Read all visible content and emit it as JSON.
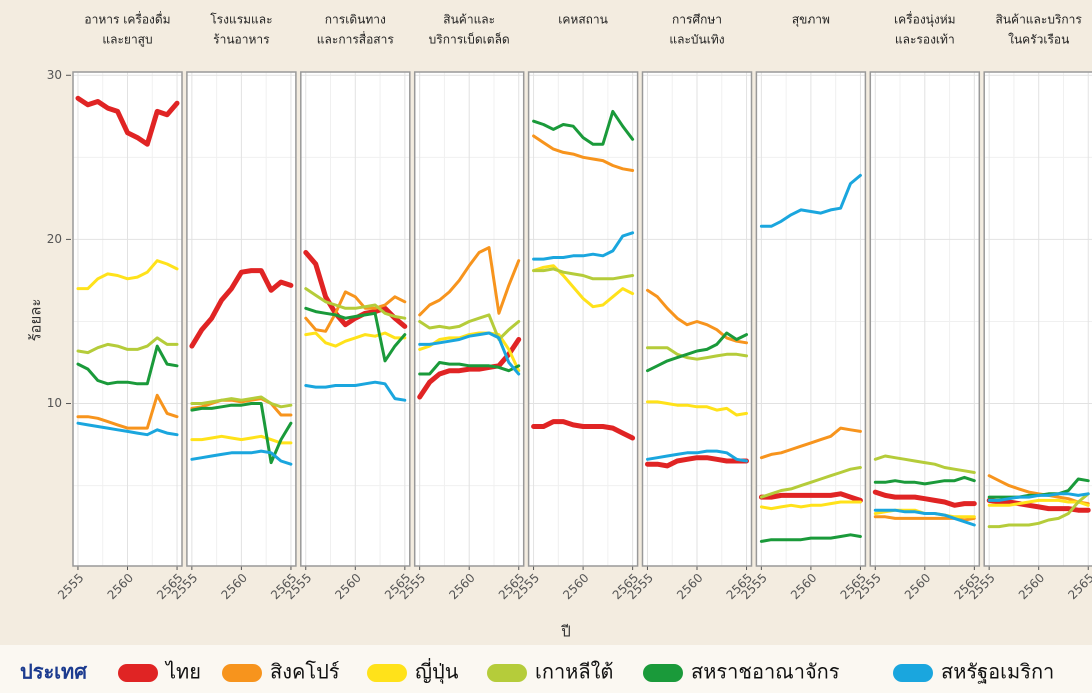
{
  "chart_data": {
    "type": "line",
    "ylabel": "ร้อยละ",
    "xlabel": "ปี",
    "legend_title": "ประเทศ",
    "x": [
      2555,
      2556,
      2557,
      2558,
      2559,
      2560,
      2561,
      2562,
      2563,
      2564,
      2565
    ],
    "xlim": [
      2554.5,
      2565.5
    ],
    "xticks": [
      2555,
      2560,
      2565
    ],
    "xminor": [
      2557.5,
      2562.5
    ],
    "ylim": [
      0.1,
      30.2
    ],
    "yticks": [
      10,
      20,
      30
    ],
    "yminor": [
      5,
      15,
      25
    ],
    "grid": true,
    "series": [
      {
        "name": "ไทย",
        "color": "#e02424"
      },
      {
        "name": "สิงคโปร์",
        "color": "#f7941d"
      },
      {
        "name": "ญี่ปุ่น",
        "color": "#ffe21a"
      },
      {
        "name": "เกาหลีใต้",
        "color": "#b5cc3a"
      },
      {
        "name": "สหราชอาณาจักร",
        "color": "#1a9a3a"
      },
      {
        "name": "สหรัฐอเมริกา",
        "color": "#1aa6de"
      }
    ],
    "panels": [
      {
        "title": [
          "อาหาร เครื่องดื่ม",
          "และยาสูบ"
        ],
        "values": [
          [
            28.6,
            28.2,
            28.4,
            28.0,
            27.8,
            26.5,
            26.2,
            25.8,
            27.8,
            27.6,
            28.3
          ],
          [
            9.2,
            9.2,
            9.1,
            8.9,
            8.7,
            8.5,
            8.5,
            8.5,
            10.5,
            9.4,
            9.2
          ],
          [
            17.0,
            17.0,
            17.6,
            17.9,
            17.8,
            17.6,
            17.7,
            18.0,
            18.7,
            18.5,
            18.2
          ],
          [
            13.2,
            13.1,
            13.4,
            13.6,
            13.5,
            13.3,
            13.3,
            13.5,
            14.0,
            13.6,
            13.6
          ],
          [
            12.4,
            12.1,
            11.4,
            11.2,
            11.3,
            11.3,
            11.2,
            11.2,
            13.5,
            12.4,
            12.3
          ],
          [
            8.8,
            8.7,
            8.6,
            8.5,
            8.4,
            8.3,
            8.2,
            8.1,
            8.4,
            8.2,
            8.1
          ]
        ]
      },
      {
        "title": [
          "โรงแรมและ",
          "ร้านอาหาร"
        ],
        "values": [
          [
            13.5,
            14.5,
            15.2,
            16.3,
            17.0,
            18.0,
            18.1,
            18.1,
            16.9,
            17.4,
            17.2
          ],
          [
            9.7,
            9.8,
            10.0,
            10.2,
            10.2,
            10.1,
            10.2,
            10.3,
            10.0,
            9.3,
            9.3
          ],
          [
            7.8,
            7.8,
            7.9,
            8.0,
            7.9,
            7.8,
            7.9,
            8.0,
            7.8,
            7.6,
            7.6
          ],
          [
            10.0,
            10.0,
            10.1,
            10.2,
            10.3,
            10.2,
            10.3,
            10.4,
            10.0,
            9.8,
            9.9
          ],
          [
            9.6,
            9.7,
            9.7,
            9.8,
            9.9,
            9.9,
            10.0,
            10.0,
            6.4,
            7.8,
            8.8
          ],
          [
            6.6,
            6.7,
            6.8,
            6.9,
            7.0,
            7.0,
            7.0,
            7.1,
            7.0,
            6.5,
            6.3
          ]
        ]
      },
      {
        "title": [
          "การเดินทาง",
          "และการสื่อสาร"
        ],
        "values": [
          [
            19.2,
            18.5,
            16.5,
            15.5,
            14.8,
            15.2,
            15.5,
            15.6,
            15.8,
            15.2,
            14.7
          ],
          [
            15.2,
            14.5,
            14.4,
            15.5,
            16.8,
            16.5,
            15.8,
            15.8,
            16.0,
            16.5,
            16.2
          ],
          [
            14.2,
            14.3,
            13.7,
            13.5,
            13.8,
            14.0,
            14.2,
            14.1,
            14.3,
            14.0,
            14.0
          ],
          [
            17.0,
            16.6,
            16.2,
            16.0,
            15.8,
            15.8,
            15.9,
            16.0,
            15.5,
            15.3,
            15.2
          ],
          [
            15.8,
            15.6,
            15.5,
            15.4,
            15.2,
            15.3,
            15.4,
            15.5,
            12.6,
            13.5,
            14.2
          ],
          [
            11.1,
            11.0,
            11.0,
            11.1,
            11.1,
            11.1,
            11.2,
            11.3,
            11.2,
            10.3,
            10.2
          ]
        ]
      },
      {
        "title": [
          "สินค้าและ",
          "บริการเบ็ดเตล็ด"
        ],
        "values": [
          [
            10.4,
            11.3,
            11.8,
            12.0,
            12.0,
            12.1,
            12.1,
            12.2,
            12.3,
            13.0,
            13.9
          ],
          [
            15.4,
            16.0,
            16.3,
            16.8,
            17.5,
            18.4,
            19.2,
            19.5,
            15.5,
            17.2,
            18.7
          ],
          [
            13.3,
            13.5,
            13.9,
            14.0,
            14.0,
            14.2,
            14.3,
            14.3,
            14.2,
            13.3,
            12.0
          ],
          [
            15.0,
            14.6,
            14.7,
            14.6,
            14.7,
            15.0,
            15.2,
            15.4,
            13.9,
            14.5,
            15.0
          ],
          [
            11.8,
            11.8,
            12.5,
            12.4,
            12.4,
            12.3,
            12.3,
            12.3,
            12.2,
            12.0,
            12.3
          ],
          [
            13.6,
            13.6,
            13.7,
            13.8,
            13.9,
            14.1,
            14.2,
            14.3,
            14.0,
            12.5,
            11.8
          ]
        ]
      },
      {
        "title": [
          "เคหสถาน"
        ],
        "values": [
          [
            8.6,
            8.6,
            8.9,
            8.9,
            8.7,
            8.6,
            8.6,
            8.6,
            8.5,
            8.2,
            7.9
          ],
          [
            26.3,
            25.9,
            25.5,
            25.3,
            25.2,
            25.0,
            24.9,
            24.8,
            24.5,
            24.3,
            24.2
          ],
          [
            18.1,
            18.3,
            18.4,
            17.8,
            17.1,
            16.4,
            15.9,
            16.0,
            16.5,
            17.0,
            16.7
          ],
          [
            18.1,
            18.1,
            18.2,
            18.0,
            17.9,
            17.8,
            17.6,
            17.6,
            17.6,
            17.7,
            17.8
          ],
          [
            27.2,
            27.0,
            26.7,
            27.0,
            26.9,
            26.2,
            25.8,
            25.8,
            27.8,
            26.9,
            26.1
          ],
          [
            18.8,
            18.8,
            18.9,
            18.9,
            19.0,
            19.0,
            19.1,
            19.0,
            19.3,
            20.2,
            20.4
          ]
        ]
      },
      {
        "title": [
          "การศึกษา",
          "และบันเทิง"
        ],
        "values": [
          [
            6.3,
            6.3,
            6.2,
            6.5,
            6.6,
            6.7,
            6.7,
            6.6,
            6.5,
            6.5,
            6.5
          ],
          [
            16.9,
            16.5,
            15.8,
            15.2,
            14.8,
            15.0,
            14.8,
            14.5,
            14.0,
            13.8,
            13.7
          ],
          [
            10.1,
            10.1,
            10.0,
            9.9,
            9.9,
            9.8,
            9.8,
            9.6,
            9.7,
            9.3,
            9.4
          ],
          [
            13.4,
            13.4,
            13.4,
            13.0,
            12.8,
            12.7,
            12.8,
            12.9,
            13.0,
            13.0,
            12.9
          ],
          [
            12.0,
            12.3,
            12.6,
            12.8,
            13.0,
            13.2,
            13.3,
            13.6,
            14.3,
            13.9,
            14.2
          ],
          [
            6.6,
            6.7,
            6.8,
            6.9,
            7.0,
            7.0,
            7.1,
            7.1,
            7.0,
            6.6,
            6.5
          ]
        ]
      },
      {
        "title": [
          "สุขภาพ"
        ],
        "values": [
          [
            4.3,
            4.3,
            4.4,
            4.4,
            4.4,
            4.4,
            4.4,
            4.4,
            4.5,
            4.3,
            4.1
          ],
          [
            6.7,
            6.9,
            7.0,
            7.2,
            7.4,
            7.6,
            7.8,
            8.0,
            8.5,
            8.4,
            8.3
          ],
          [
            3.7,
            3.6,
            3.7,
            3.8,
            3.7,
            3.8,
            3.8,
            3.9,
            4.0,
            4.0,
            4.0
          ],
          [
            4.3,
            4.5,
            4.7,
            4.8,
            5.0,
            5.2,
            5.4,
            5.6,
            5.8,
            6.0,
            6.1
          ],
          [
            1.6,
            1.7,
            1.7,
            1.7,
            1.7,
            1.8,
            1.8,
            1.8,
            1.9,
            2.0,
            1.9
          ],
          [
            20.8,
            20.8,
            21.1,
            21.5,
            21.8,
            21.7,
            21.6,
            21.8,
            21.9,
            23.4,
            23.9
          ]
        ]
      },
      {
        "title": [
          "เครื่องนุ่งห่ม",
          "และรองเท้า"
        ],
        "values": [
          [
            4.6,
            4.4,
            4.3,
            4.3,
            4.3,
            4.2,
            4.1,
            4.0,
            3.8,
            3.9,
            3.9
          ],
          [
            3.1,
            3.1,
            3.0,
            3.0,
            3.0,
            3.0,
            3.0,
            3.0,
            3.0,
            2.9,
            3.0
          ],
          [
            3.3,
            3.4,
            3.5,
            3.5,
            3.5,
            3.3,
            3.3,
            3.2,
            3.1,
            3.1,
            3.1
          ],
          [
            6.6,
            6.8,
            6.7,
            6.6,
            6.5,
            6.4,
            6.3,
            6.1,
            6.0,
            5.9,
            5.8
          ],
          [
            5.2,
            5.2,
            5.3,
            5.2,
            5.2,
            5.1,
            5.2,
            5.3,
            5.3,
            5.5,
            5.3
          ],
          [
            3.5,
            3.5,
            3.5,
            3.4,
            3.4,
            3.3,
            3.3,
            3.2,
            3.0,
            2.8,
            2.6
          ]
        ]
      },
      {
        "title": [
          "สินค้าและบริการ",
          "ในครัวเรือน"
        ],
        "values": [
          [
            4.1,
            4.0,
            4.0,
            3.9,
            3.8,
            3.7,
            3.6,
            3.6,
            3.6,
            3.5,
            3.5
          ],
          [
            5.6,
            5.3,
            5.0,
            4.8,
            4.6,
            4.5,
            4.4,
            4.3,
            4.2,
            4.0,
            3.9
          ],
          [
            3.8,
            3.8,
            3.8,
            3.9,
            4.0,
            4.1,
            4.1,
            4.1,
            4.0,
            4.0,
            3.8
          ],
          [
            2.5,
            2.5,
            2.6,
            2.6,
            2.6,
            2.7,
            2.9,
            3.0,
            3.3,
            4.0,
            4.5
          ],
          [
            4.3,
            4.3,
            4.3,
            4.3,
            4.4,
            4.4,
            4.5,
            4.5,
            4.7,
            5.4,
            5.3
          ],
          [
            4.1,
            4.1,
            4.2,
            4.3,
            4.3,
            4.4,
            4.4,
            4.5,
            4.5,
            4.4,
            4.5
          ]
        ]
      }
    ]
  }
}
